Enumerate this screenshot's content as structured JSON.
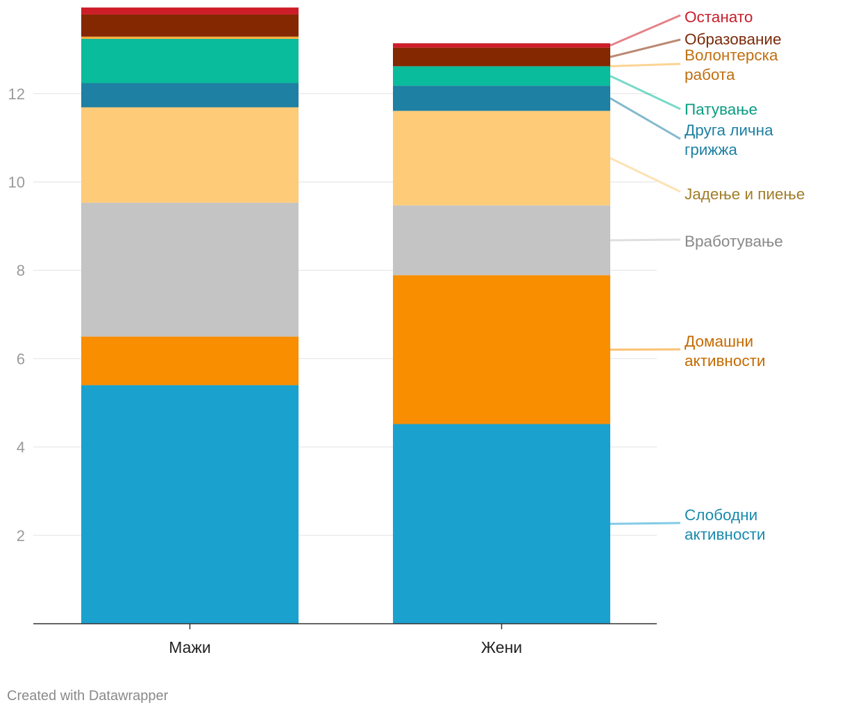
{
  "chart_data": {
    "type": "bar",
    "stacked": true,
    "categories": [
      "Мажи",
      "Жени"
    ],
    "ylim": [
      0,
      14
    ],
    "yticks": [
      2,
      4,
      6,
      8,
      10,
      12
    ],
    "grid": true,
    "legend": "right, inline labels",
    "series": [
      {
        "name": "Слободни активности",
        "label_lines": [
          "Слободни",
          "активности"
        ],
        "color": "#1ba1ce",
        "label_color": "#1a8aad",
        "values": [
          5.4,
          4.52
        ]
      },
      {
        "name": "Домашни активности",
        "label_lines": [
          "Домашни",
          "активности"
        ],
        "color": "#f88e00",
        "label_color": "#c46a00",
        "values": [
          1.1,
          3.37
        ]
      },
      {
        "name": "Вработување",
        "label_lines": [
          "Вработување"
        ],
        "color": "#c4c4c4",
        "label_color": "#888888",
        "values": [
          3.03,
          1.58
        ]
      },
      {
        "name": "Јадење и пиење",
        "label_lines": [
          "Јадење и пиење"
        ],
        "color": "#fecb79",
        "label_color": "#a07d2a",
        "values": [
          2.16,
          2.14
        ]
      },
      {
        "name": "Друга лична грижжа",
        "label_lines": [
          "Друга лична",
          "грижжа"
        ],
        "color": "#1e80a2",
        "label_color": "#1e80a2",
        "values": [
          0.55,
          0.57
        ]
      },
      {
        "name": "Патување",
        "label_lines": [
          "Патување"
        ],
        "color": "#09bc9c",
        "label_color": "#089c82",
        "values": [
          1.0,
          0.44
        ]
      },
      {
        "name": "Волонтерска работа",
        "label_lines": [
          "Волонтерска",
          "работа"
        ],
        "color": "#fbae3c",
        "label_color": "#c06f10",
        "values": [
          0.05,
          0.0
        ]
      },
      {
        "name": "Образование",
        "label_lines": [
          "Образование"
        ],
        "color": "#832800",
        "label_color": "#7a2a0a",
        "values": [
          0.5,
          0.42
        ]
      },
      {
        "name": "Останато",
        "label_lines": [
          "Останато"
        ],
        "color": "#cd1d28",
        "label_color": "#c81e2a",
        "values": [
          0.16,
          0.1
        ]
      }
    ]
  },
  "footer": {
    "credit": "Created with Datawrapper"
  }
}
